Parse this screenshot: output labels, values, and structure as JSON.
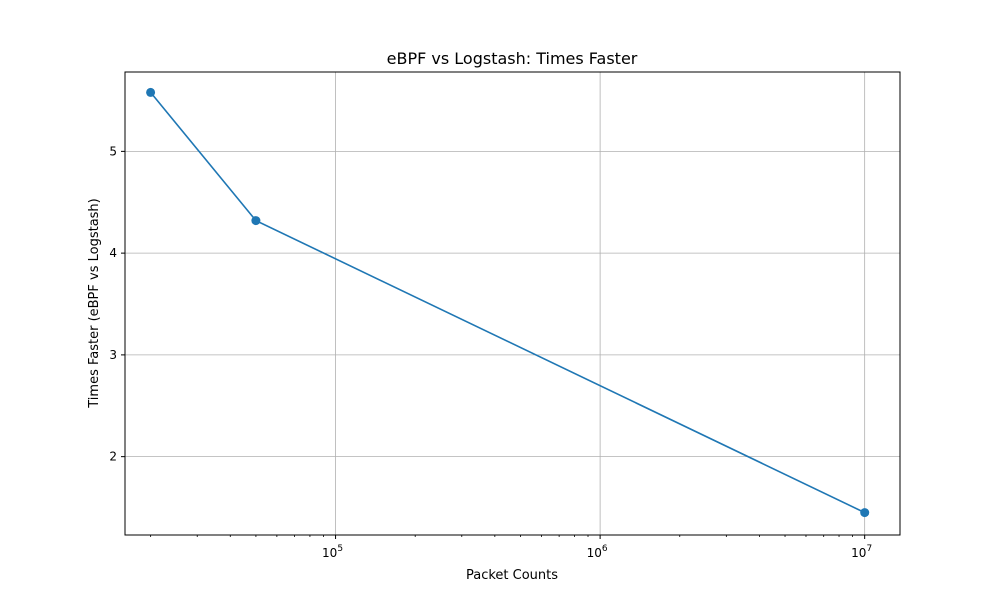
{
  "chart_data": {
    "type": "line",
    "title": "eBPF vs Logstash: Times Faster",
    "xlabel": "Packet Counts",
    "ylabel": "Times Faster (eBPF vs Logstash)",
    "x_scale": "log",
    "xlim": [
      16000,
      13600000
    ],
    "ylim": [
      1.23,
      5.78
    ],
    "x_ticks": [
      {
        "value": 100000,
        "base": "10",
        "exp": "5"
      },
      {
        "value": 1000000,
        "base": "10",
        "exp": "6"
      },
      {
        "value": 10000000,
        "base": "10",
        "exp": "7"
      }
    ],
    "y_ticks": [
      2,
      3,
      4,
      5
    ],
    "grid": true,
    "series": [
      {
        "color": "#1f77b4",
        "marker": "circle",
        "x": [
          20000,
          50000,
          10000000
        ],
        "y": [
          5.58,
          4.32,
          1.45
        ]
      }
    ]
  }
}
